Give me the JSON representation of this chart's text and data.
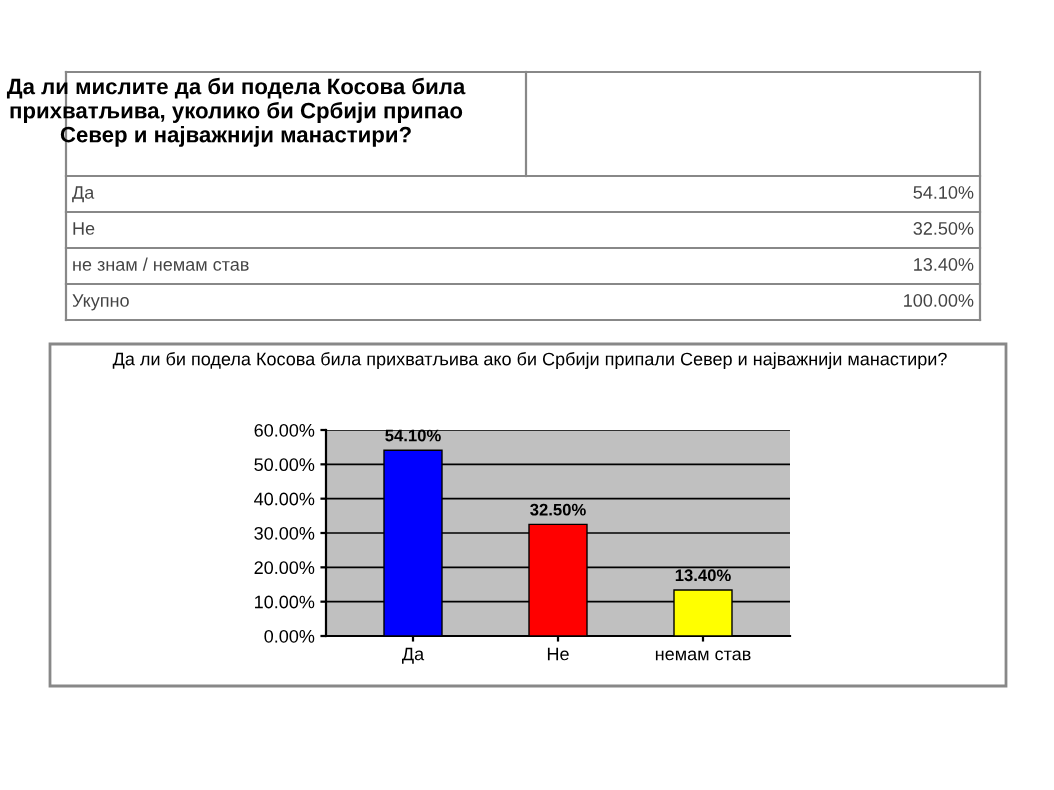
{
  "chart_data": {
    "type": "bar",
    "title": "Да ли би подела Косова била прихватљива ако би Србији припали Север и најважнији манастири?",
    "categories": [
      "Да",
      "Не",
      "немам став"
    ],
    "values": [
      54.1,
      32.5,
      13.4
    ],
    "colors": [
      "#0000ff",
      "#ff0000",
      "#ffff00"
    ],
    "value_labels": [
      "54.10%",
      "32.50%",
      "13.40%"
    ],
    "ylim": [
      0,
      60
    ],
    "yticks": [
      {
        "value": 0,
        "label": "0.00%"
      },
      {
        "value": 10,
        "label": "10.00%"
      },
      {
        "value": 20,
        "label": "20.00%"
      },
      {
        "value": 30,
        "label": "30.00%"
      },
      {
        "value": 40,
        "label": "40.00%"
      },
      {
        "value": 50,
        "label": "50.00%"
      },
      {
        "value": 60,
        "label": "60.00%"
      }
    ],
    "grid": "y",
    "annotations": [
      "Да ли мислите да би подела Косова била прихватљива, уколико би Србији припао Север и најважнији манастири?",
      "Да",
      "54.10%",
      "Не",
      "32.50%",
      "не знам / немам став",
      "13.40%",
      "Укупно",
      "100.00%"
    ]
  }
}
